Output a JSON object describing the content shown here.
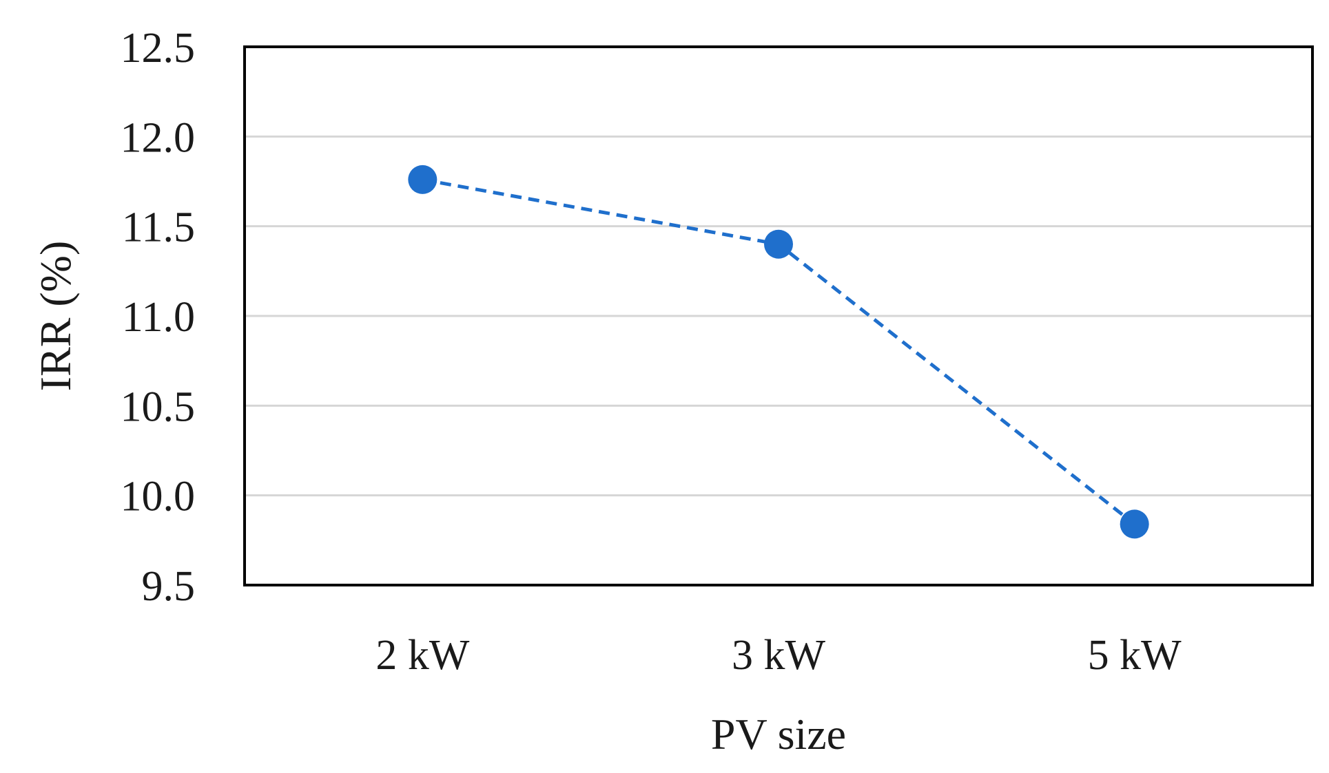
{
  "chart_data": {
    "type": "line",
    "categories": [
      "2 kW",
      "3 kW",
      "5 kW"
    ],
    "series": [
      {
        "values": [
          11.76,
          11.4,
          9.84
        ],
        "color": "#1f6fcc",
        "line_style": "dashed",
        "marker": "circle"
      }
    ],
    "xlabel": "PV size",
    "ylabel": "IRR (%)",
    "ylim": [
      9.5,
      12.5
    ],
    "yticks": [
      "9.5",
      "10.0",
      "10.5",
      "11.0",
      "11.5",
      "12.0",
      "12.5"
    ],
    "grid": "horizontal"
  }
}
